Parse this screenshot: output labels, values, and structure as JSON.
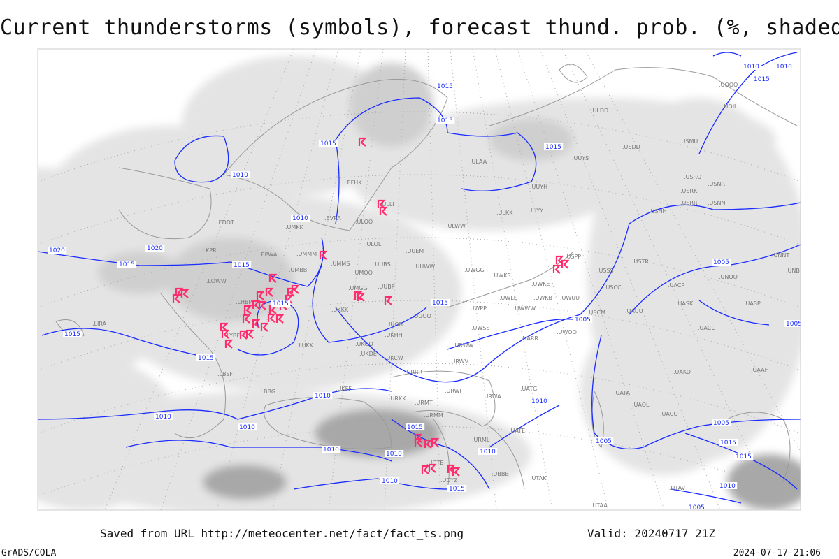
{
  "title": "Current thunderstorms (symbols), forecast thund. prob. (%, shaded)",
  "footer": {
    "saved_from": "Saved from URL http://meteocenter.net/fact/fact_ts.png",
    "valid": "Valid: 20240717 21Z",
    "software": "GrADS/COLA",
    "generated": "2024-07-17-21:06"
  },
  "colors": {
    "isobar": "#1a2cff",
    "thunderstorm_symbol": "#ff2d6e",
    "coastline": "#999999",
    "shading_light": "#e4e4e4",
    "shading_mid": "#cfcfcf",
    "shading_dark": "#a8a8a8"
  },
  "isobar_labels": [
    "1015",
    "1010",
    "1015",
    "1015",
    "1015",
    "1010",
    "1010",
    "1020",
    "1020",
    "1015",
    "1015",
    "1015",
    "1015",
    "1015",
    "1015",
    "1010",
    "1010",
    "1010",
    "1010",
    "1010",
    "1010",
    "1015",
    "1005",
    "1015",
    "1005",
    "1005",
    "1010",
    "1015",
    "1015",
    "1010",
    "1005",
    "1005",
    "1015",
    "1010",
    "1005",
    "1010"
  ],
  "stations": [
    ".ULDD",
    ".USDD",
    ".USMU",
    ".UOOO",
    ".UOII",
    ".UUYS",
    ".ULAA",
    ".UUYH",
    ".USRO",
    ".USRK",
    ".USNR",
    ".USRR",
    ".USNN",
    ".USHH",
    ".ULKK",
    ".UUYY",
    ".ULWW",
    ".ULOO",
    ".EFHK",
    ".ULLI",
    ".EVRA",
    ".EDDT",
    ".UMKK",
    ".ULOL",
    ".UUEM",
    ".EPWA",
    ".UMMS",
    ".UMOO",
    ".UUBS",
    ".UUWW",
    ".UWGG",
    ".UWKS",
    ".USPP",
    ".USSS",
    ".USTR",
    ".UNNT",
    ".UNBB",
    ".UNOO",
    ".UACP",
    ".UMGG",
    ".UUBP",
    ".UWKE",
    ".USCC",
    ".UWKB",
    ".UWUU",
    ".UWLL",
    ".UWWW",
    ".UASK",
    ".UASP",
    ".UKKK",
    ".UWPP",
    ".USCM",
    ".UAUU",
    ".UUOO",
    ".UUOB",
    ".UWSS",
    ".UWOO",
    ".UACC",
    ".LUKK",
    ".UKHH",
    ".UKOO",
    ".UARR",
    ".UKDE",
    ".URWW",
    ".UKCW",
    ".URWV",
    ".URRR",
    ".UAKO",
    ".UAAH",
    ".UATA",
    ".UAOL",
    ".UACO",
    ".UATG",
    ".URWI",
    ".URWA",
    ".URMT",
    ".URKK",
    ".UKFF",
    ".LBSF",
    ".LBBG",
    ".URMM",
    ".UATE",
    ".LKPR",
    ".LOWW",
    ".LHBP",
    ".LYBE",
    ".LIRA",
    ".UMBB",
    ".UMMM",
    ".UTAK",
    ".UTAV",
    ".UTAA",
    ".UBBB",
    ".URML",
    ".UGTB",
    ".UDYZ"
  ]
}
